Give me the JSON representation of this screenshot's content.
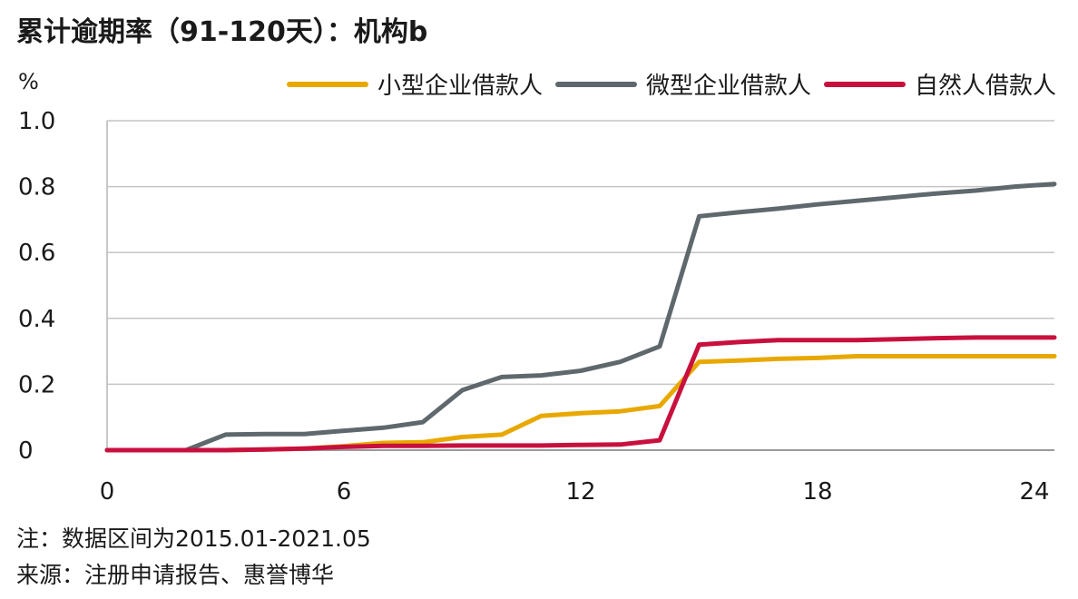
{
  "title": "累计逾期率（91-120天）：机构b",
  "footer": {
    "note": "注：数据区间为2015.01-2021.05",
    "source": "来源：注册申请报告、惠誉博华"
  },
  "chart_data": {
    "type": "line",
    "ylabel": "%",
    "xlim": [
      0,
      24
    ],
    "ylim": [
      0,
      1.0
    ],
    "x_ticks": [
      "0",
      "6",
      "12",
      "18",
      "24"
    ],
    "y_ticks": [
      "0",
      "0.2",
      "0.4",
      "0.6",
      "0.8",
      "1.0"
    ],
    "grid": "horizontal",
    "legend_position": "top",
    "x": [
      0,
      1,
      2,
      3,
      4,
      5,
      6,
      7,
      8,
      9,
      10,
      11,
      12,
      13,
      14,
      15,
      16,
      17,
      18,
      19,
      20,
      21,
      22,
      23,
      24
    ],
    "series": [
      {
        "name": "小型企业借款人",
        "color": "#E8A800",
        "values": [
          0,
          0,
          0,
          0,
          0.002,
          0.005,
          0.012,
          0.022,
          0.024,
          0.04,
          0.047,
          0.104,
          0.112,
          0.118,
          0.134,
          0.268,
          0.272,
          0.277,
          0.28,
          0.285,
          0.285,
          0.285,
          0.285,
          0.285,
          0.285
        ]
      },
      {
        "name": "微型企业借款人",
        "color": "#5F686D",
        "values": [
          0,
          0,
          0,
          0.047,
          0.049,
          0.049,
          0.059,
          0.068,
          0.085,
          0.182,
          0.222,
          0.227,
          0.241,
          0.268,
          0.315,
          0.71,
          0.722,
          0.733,
          0.746,
          0.757,
          0.768,
          0.779,
          0.788,
          0.8,
          0.808
        ]
      },
      {
        "name": "自然人借款人",
        "color": "#C8103E",
        "values": [
          0,
          0,
          0,
          0,
          0.002,
          0.005,
          0.01,
          0.013,
          0.013,
          0.014,
          0.014,
          0.014,
          0.016,
          0.017,
          0.03,
          0.32,
          0.328,
          0.334,
          0.334,
          0.334,
          0.337,
          0.34,
          0.342,
          0.342,
          0.342
        ]
      }
    ]
  }
}
